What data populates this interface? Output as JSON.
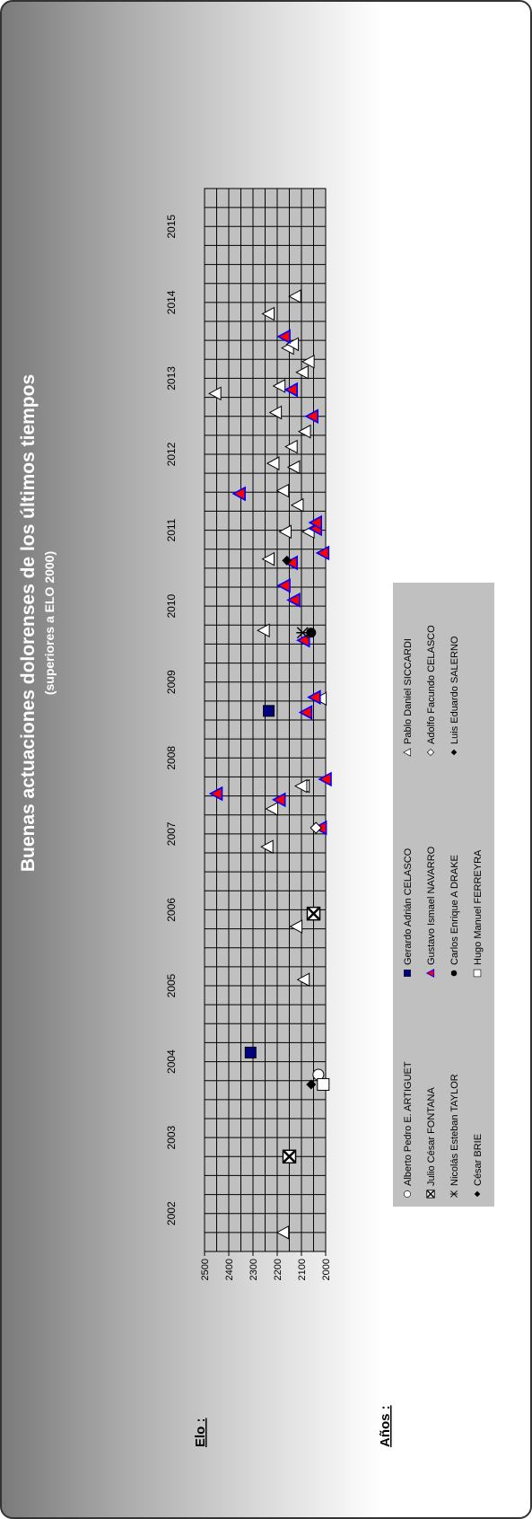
{
  "chart_data": {
    "type": "scatter",
    "title": "Buenas actuaciones dolorenses de los últimos tiempos",
    "subtitle": "(superiores a ELO 2000)",
    "xlabel": "Años :",
    "ylabel": "Elo :",
    "xlim": [
      2002,
      2016
    ],
    "ylim": [
      2000,
      2500
    ],
    "x_ticks": [
      "2002",
      "2003",
      "2004",
      "2005",
      "2006",
      "2007",
      "2008",
      "2009",
      "2010",
      "2011",
      "2012",
      "2013",
      "2014",
      "2015"
    ],
    "y_ticks": [
      "2000",
      "2100",
      "2200",
      "2300",
      "2400",
      "2500"
    ],
    "grid": true,
    "legend_position": "bottom",
    "series": [
      {
        "name": "Alberto Pedro E. ARTIGUET",
        "marker": "circle-open",
        "points": [
          [
            2004.33,
            2030
          ]
        ]
      },
      {
        "name": "Gerardo Adrián CELASCO",
        "marker": "square-navy",
        "points": [
          [
            2004.62,
            2310
          ],
          [
            2009.12,
            2235
          ]
        ]
      },
      {
        "name": "Pablo Daniel SICCARDI",
        "marker": "triangle-open",
        "points": [
          [
            2002.25,
            2175
          ],
          [
            2005.58,
            2090
          ],
          [
            2006.28,
            2120
          ],
          [
            2007.33,
            2240
          ],
          [
            2007.83,
            2220
          ],
          [
            2008.13,
            2090
          ],
          [
            2008.13,
            2100
          ],
          [
            2009.28,
            2020
          ],
          [
            2010.18,
            2255
          ],
          [
            2011.12,
            2235
          ],
          [
            2011.48,
            2165
          ],
          [
            2011.48,
            2070
          ],
          [
            2011.83,
            2115
          ],
          [
            2012.02,
            2175
          ],
          [
            2012.33,
            2130
          ],
          [
            2012.38,
            2215
          ],
          [
            2012.6,
            2140
          ],
          [
            2012.8,
            2085
          ],
          [
            2013.05,
            2205
          ],
          [
            2013.3,
            2455
          ],
          [
            2013.4,
            2190
          ],
          [
            2013.58,
            2095
          ],
          [
            2013.72,
            2070
          ],
          [
            2013.9,
            2155
          ],
          [
            2013.95,
            2135
          ],
          [
            2014.35,
            2235
          ],
          [
            2014.58,
            2125
          ]
        ]
      },
      {
        "name": "Julio César FONTANA",
        "marker": "square-x",
        "points": [
          [
            2003.25,
            2150
          ],
          [
            2006.45,
            2050
          ]
        ]
      },
      {
        "name": "Gustavo Ismael NAVARRO",
        "marker": "triangle-red",
        "points": [
          [
            2007.58,
            2020
          ],
          [
            2007.95,
            2190
          ],
          [
            2008.03,
            2450
          ],
          [
            2008.22,
            2000
          ],
          [
            2009.1,
            2080
          ],
          [
            2009.3,
            2045
          ],
          [
            2010.05,
            2090
          ],
          [
            2010.58,
            2130
          ],
          [
            2010.77,
            2170
          ],
          [
            2011.07,
            2140
          ],
          [
            2011.2,
            2010
          ],
          [
            2011.52,
            2040
          ],
          [
            2011.6,
            2040
          ],
          [
            2011.98,
            2355
          ],
          [
            2013.0,
            2055
          ],
          [
            2013.35,
            2140
          ],
          [
            2014.05,
            2170
          ]
        ]
      },
      {
        "name": "Adolfo Facundo CELASCO",
        "marker": "diamond-open",
        "points": [
          [
            2007.58,
            2040
          ]
        ]
      },
      {
        "name": "Nicolás Esteban TAYLOR",
        "marker": "asterisk",
        "points": [
          [
            2010.15,
            2095
          ]
        ]
      },
      {
        "name": "Carlos Enrique A. DRAKE",
        "marker": "circle-black",
        "points": [
          [
            2010.15,
            2060
          ]
        ]
      },
      {
        "name": "Luis Eduardo SALERNO",
        "marker": "diamond-black",
        "points": [
          [
            2004.2,
            2060
          ],
          [
            2011.1,
            2160
          ]
        ]
      },
      {
        "name": "César BRIE",
        "marker": "diamond-black-small",
        "points": []
      },
      {
        "name": "Hugo Manuel FERREYRA",
        "marker": "square-open",
        "points": [
          [
            2004.2,
            2010
          ]
        ]
      }
    ]
  },
  "legend": [
    {
      "label": "Alberto Pedro E. ARTIGUET",
      "icon": "circle-open"
    },
    {
      "label": "Gerardo Adrián CELASCO",
      "icon": "square-navy"
    },
    {
      "label": "Pablo Daniel SICCARDI",
      "icon": "triangle-open"
    },
    {
      "label": "Julio César FONTANA",
      "icon": "square-x"
    },
    {
      "label": "Gustavo Ismael NAVARRO",
      "icon": "triangle-red"
    },
    {
      "label": "Adolfo Facundo CELASCO",
      "icon": "diamond-open"
    },
    {
      "label": "Nicolás Esteban TAYLOR",
      "icon": "asterisk"
    },
    {
      "label": "Carlos Enrique A DRAKE",
      "icon": "circle-black"
    },
    {
      "label": "Luis Eduardo SALERNO",
      "icon": "diamond-black"
    },
    {
      "label": "César BRIE",
      "icon": "diamond-black"
    },
    {
      "label": "Hugo Manuel FERREYRA",
      "icon": "square-open"
    }
  ],
  "colors": {
    "plot_bg": "#c0c0c0",
    "grid": "#000000",
    "navy": "#000080",
    "red": "#ff0000",
    "blue": "#0000ff",
    "legend_bg": "#c0c0c0"
  }
}
